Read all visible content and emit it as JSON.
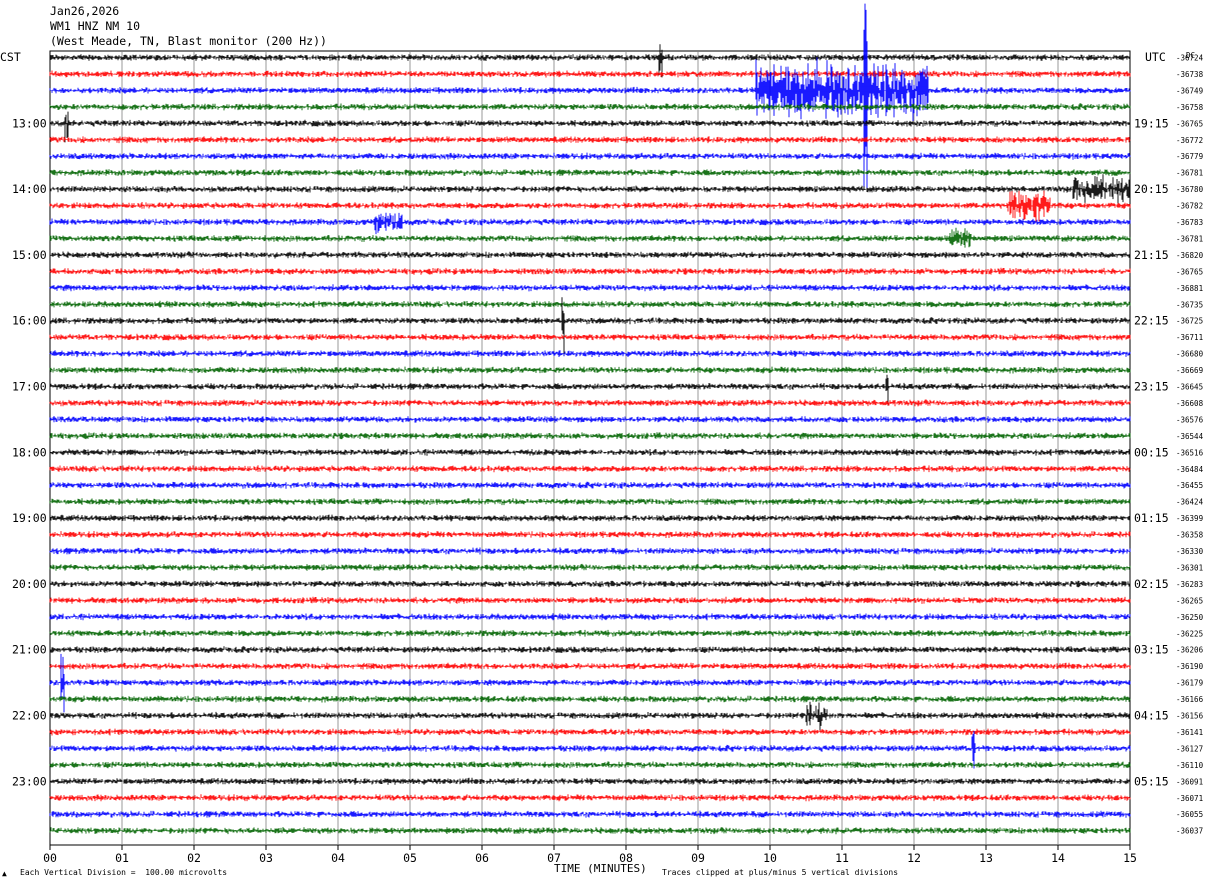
{
  "header": {
    "date": "Jan26,2026",
    "station": "WM1 HNZ NM 10",
    "location": "(West Meade, TN, Blast monitor (200 Hz))"
  },
  "left_zone_label": "CST",
  "right_zone_label": "UTC",
  "dc_label": "DC",
  "x_axis": {
    "title": "TIME (MINUTES)",
    "ticks": [
      "00",
      "01",
      "02",
      "03",
      "04",
      "05",
      "06",
      "07",
      "08",
      "09",
      "10",
      "11",
      "12",
      "13",
      "14",
      "15"
    ]
  },
  "footer": {
    "marker": "▲",
    "left": "Each Vertical Division =  100.00 microvolts",
    "right": "Traces clipped at plus/minus 5 vertical divisions"
  },
  "colors": {
    "trace_cycle": [
      "#000000",
      "#ff0000",
      "#0000ff",
      "#006400"
    ],
    "grid": "#808080"
  },
  "chart_data": {
    "type": "line",
    "title": "WM1 HNZ NM 10",
    "xlabel": "TIME (MINUTES)",
    "ylabel": "",
    "xlim": [
      0,
      15
    ],
    "left_time_labels": [
      "13:00",
      "14:00",
      "15:00",
      "16:00",
      "17:00",
      "18:00",
      "19:00",
      "20:00",
      "21:00",
      "22:00",
      "23:00"
    ],
    "right_time_labels": [
      "19:15",
      "20:15",
      "21:15",
      "22:15",
      "23:15",
      "00:15",
      "01:15",
      "02:15",
      "03:15",
      "04:15",
      "05:15"
    ],
    "dc_offsets": [
      "-36724",
      "-36738",
      "-36749",
      "-36758",
      "-36765",
      "-36772",
      "-36779",
      "-36781",
      "-36780",
      "-36782",
      "-36783",
      "-36781",
      "-36820",
      "-36765",
      "-36881",
      "-36735",
      "-36725",
      "-36711",
      "-36680",
      "-36669",
      "-36645",
      "-36608",
      "-36576",
      "-36544",
      "-36516",
      "-36484",
      "-36455",
      "-36424",
      "-36399",
      "-36358",
      "-36330",
      "-36301",
      "-36283",
      "-36265",
      "-36250",
      "-36225",
      "-36206",
      "-36190",
      "-36179",
      "-36166",
      "-36156",
      "-36141",
      "-36127",
      "-36110",
      "-36091",
      "-36071",
      "-36055",
      "-36037"
    ],
    "trace_count": 48,
    "minutes_per_trace": 15,
    "events": [
      {
        "trace": 0,
        "minute": 8.45,
        "amplitude": 1.3
      },
      {
        "trace": 2,
        "minute": 9.8,
        "amplitude": 2.0,
        "duration": 2.4
      },
      {
        "trace": 2,
        "minute": 11.3,
        "amplitude": 5.0
      },
      {
        "trace": 4,
        "minute": 0.2,
        "amplitude": 1.0
      },
      {
        "trace": 8,
        "minute": 14.2,
        "amplitude": 0.8,
        "duration": 0.8
      },
      {
        "trace": 9,
        "minute": 13.3,
        "amplitude": 1.0,
        "duration": 0.6
      },
      {
        "trace": 10,
        "minute": 4.5,
        "amplitude": 0.6,
        "duration": 0.4
      },
      {
        "trace": 11,
        "minute": 12.5,
        "amplitude": 0.6,
        "duration": 0.3
      },
      {
        "trace": 16,
        "minute": 7.1,
        "amplitude": 2.0
      },
      {
        "trace": 20,
        "minute": 11.6,
        "amplitude": 2.0
      },
      {
        "trace": 38,
        "minute": 0.15,
        "amplitude": 2.0
      },
      {
        "trace": 40,
        "minute": 10.5,
        "amplitude": 0.8,
        "duration": 0.3
      },
      {
        "trace": 42,
        "minute": 12.8,
        "amplitude": 1.2
      }
    ]
  }
}
